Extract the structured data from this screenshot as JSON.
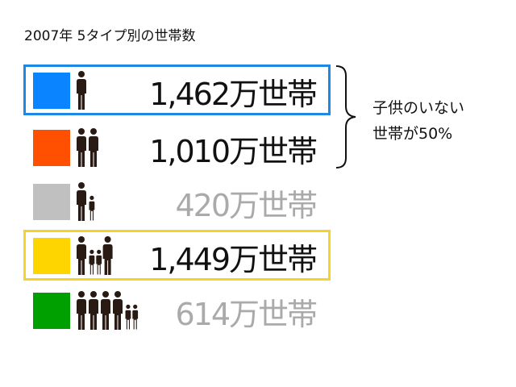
{
  "title": "2007年 5タイプ別の世帯数",
  "rows": [
    {
      "value": "1,462万世帯",
      "swatch": "#0a84ff",
      "highlight": "#1e88e5",
      "text_color": "#111111",
      "figures": [
        "adult"
      ]
    },
    {
      "value": "1,010万世帯",
      "swatch": "#ff4f00",
      "highlight": "",
      "text_color": "#111111",
      "figures": [
        "adult",
        "adult"
      ]
    },
    {
      "value": "420万世帯",
      "swatch": "#c0c0c0",
      "highlight": "",
      "text_color": "#aaaaaa",
      "figures": [
        "adult",
        "child"
      ]
    },
    {
      "value": "1,449万世帯",
      "swatch": "#ffd500",
      "highlight": "#f5d327",
      "text_color": "#111111",
      "figures": [
        "adult",
        "child",
        "child",
        "adult"
      ]
    },
    {
      "value": "614万世帯",
      "swatch": "#00a000",
      "highlight": "",
      "text_color": "#aaaaaa",
      "figures": [
        "adult",
        "adult",
        "adult",
        "adult",
        "child",
        "child"
      ]
    }
  ],
  "note": {
    "line1": "子供のいない",
    "line2": "世帯が50%"
  },
  "figure_color": "#2a1a14"
}
